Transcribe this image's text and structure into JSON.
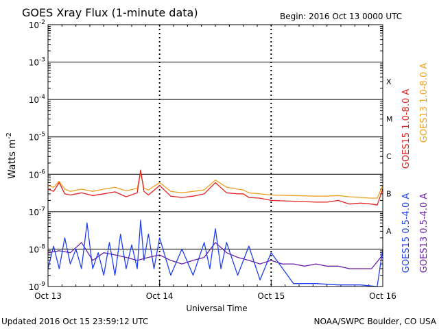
{
  "page": {
    "begin_label": "Begin:  2016 Oct 13 0000 UTC",
    "updated_label": "Updated 2016 Oct 15 23:59:12 UTC",
    "credit_label": "NOAA/SWPC Boulder, CO USA"
  },
  "chart_data": {
    "type": "line",
    "title": "GOES Xray Flux (1-minute data)",
    "xlabel": "Universal Time",
    "ylabel": "Watts m",
    "ylabel_exponent": "-2",
    "y_scale": "log",
    "ylim": [
      1e-09,
      0.01
    ],
    "xlim_days": [
      0,
      3
    ],
    "x_ticks": [
      "Oct 13",
      "Oct 14",
      "Oct 15",
      "Oct 16"
    ],
    "y_ticks": [
      {
        "base": "10",
        "exp": "-2",
        "value": 0.01
      },
      {
        "base": "10",
        "exp": "-3",
        "value": 0.001
      },
      {
        "base": "10",
        "exp": "-4",
        "value": 0.0001
      },
      {
        "base": "10",
        "exp": "-5",
        "value": 1e-05
      },
      {
        "base": "10",
        "exp": "-6",
        "value": 1e-06
      },
      {
        "base": "10",
        "exp": "-7",
        "value": 1e-07
      },
      {
        "base": "10",
        "exp": "-8",
        "value": 1e-08
      },
      {
        "base": "10",
        "exp": "-9",
        "value": 1e-09
      }
    ],
    "flare_classes": [
      {
        "label": "X",
        "value": 0.0001
      },
      {
        "label": "M",
        "value": 1e-05
      },
      {
        "label": "C",
        "value": 1e-06
      },
      {
        "label": "B",
        "value": 1e-07
      },
      {
        "label": "A",
        "value": 1e-08
      }
    ],
    "grid": "horizontal lines at each decade; dotted vertical lines at day boundaries",
    "legend_position": "right, rotated",
    "series": [
      {
        "name": "GOES15 1.0-8.0 A",
        "color": "#e32020",
        "x": [
          0,
          0.05,
          0.1,
          0.15,
          0.2,
          0.3,
          0.4,
          0.5,
          0.6,
          0.7,
          0.8,
          0.83,
          0.86,
          0.9,
          1.0,
          1.1,
          1.2,
          1.3,
          1.4,
          1.5,
          1.6,
          1.7,
          1.75,
          1.8,
          1.9,
          2.0,
          2.2,
          2.4,
          2.5,
          2.6,
          2.7,
          2.8,
          2.9,
          2.95,
          3.0
        ],
        "y": [
          4e-07,
          3.5e-07,
          6e-07,
          3e-07,
          2.8e-07,
          3.2e-07,
          2.7e-07,
          3e-07,
          3.4e-07,
          2.5e-07,
          3.2e-07,
          1.3e-06,
          3.5e-07,
          2.8e-07,
          5e-07,
          2.6e-07,
          2.4e-07,
          2.6e-07,
          3e-07,
          6e-07,
          3.2e-07,
          3e-07,
          3e-07,
          2.4e-07,
          2.3e-07,
          2e-07,
          1.9e-07,
          1.8e-07,
          1.8e-07,
          2e-07,
          1.6e-07,
          1.7e-07,
          1.6e-07,
          1.5e-07,
          4e-07
        ]
      },
      {
        "name": "GOES13 1.0-8.0 A",
        "color": "#f0a020",
        "x": [
          0,
          0.05,
          0.1,
          0.15,
          0.2,
          0.3,
          0.4,
          0.5,
          0.6,
          0.7,
          0.8,
          0.83,
          0.86,
          0.9,
          1.0,
          1.1,
          1.2,
          1.3,
          1.4,
          1.5,
          1.6,
          1.7,
          1.75,
          1.8,
          1.9,
          2.0,
          2.2,
          2.4,
          2.5,
          2.6,
          2.7,
          2.8,
          2.9,
          2.95,
          3.0
        ],
        "y": [
          5e-07,
          4.5e-07,
          6.5e-07,
          4e-07,
          3.5e-07,
          4e-07,
          3.5e-07,
          4e-07,
          4.5e-07,
          3.6e-07,
          4.2e-07,
          1.1e-06,
          4.2e-07,
          3.8e-07,
          6e-07,
          3.5e-07,
          3.2e-07,
          3.5e-07,
          3.8e-07,
          7e-07,
          4.5e-07,
          4e-07,
          3.8e-07,
          3.2e-07,
          3e-07,
          2.8e-07,
          2.7e-07,
          2.6e-07,
          2.6e-07,
          2.7e-07,
          2.5e-07,
          2.4e-07,
          2.3e-07,
          2.3e-07,
          5e-07
        ]
      },
      {
        "name": "GOES15 0.5-4.0 A",
        "color": "#1f3df0",
        "x": [
          0,
          0.05,
          0.1,
          0.15,
          0.2,
          0.25,
          0.3,
          0.35,
          0.4,
          0.45,
          0.5,
          0.55,
          0.6,
          0.65,
          0.7,
          0.75,
          0.8,
          0.83,
          0.86,
          0.9,
          0.95,
          1.0,
          1.1,
          1.2,
          1.3,
          1.4,
          1.45,
          1.5,
          1.55,
          1.6,
          1.7,
          1.8,
          1.9,
          2.0,
          2.2,
          2.4,
          2.6,
          2.8,
          2.95,
          3.0
        ],
        "y": [
          3e-09,
          1.2e-08,
          3e-09,
          2e-08,
          4e-09,
          1e-08,
          3e-09,
          5e-08,
          3e-09,
          8e-09,
          2e-09,
          1.5e-08,
          2e-09,
          2.5e-08,
          3e-09,
          1.3e-08,
          3e-09,
          6e-08,
          5e-09,
          2.5e-08,
          3e-09,
          2e-08,
          2e-09,
          1e-08,
          2e-09,
          1.5e-08,
          3e-09,
          3.5e-08,
          3e-09,
          1.5e-08,
          2e-09,
          1.2e-08,
          1.5e-09,
          8e-09,
          1.2e-09,
          1.2e-09,
          1.1e-09,
          1.1e-09,
          1e-09,
          1e-08
        ]
      },
      {
        "name": "GOES13 0.5-4.0 A",
        "color": "#6a1fa8",
        "x": [
          0,
          0.1,
          0.2,
          0.3,
          0.4,
          0.5,
          0.6,
          0.7,
          0.8,
          0.9,
          1.0,
          1.1,
          1.2,
          1.3,
          1.4,
          1.5,
          1.6,
          1.7,
          1.8,
          1.9,
          2.0,
          2.1,
          2.2,
          2.3,
          2.4,
          2.5,
          2.6,
          2.7,
          2.8,
          2.9,
          3.0
        ],
        "y": [
          8e-09,
          9e-09,
          8e-09,
          1.5e-08,
          5e-09,
          8e-09,
          7e-09,
          6e-09,
          5e-09,
          6e-09,
          7e-09,
          5e-09,
          4e-09,
          5e-09,
          6e-09,
          1.5e-08,
          8e-09,
          6e-09,
          5e-09,
          4e-09,
          5e-09,
          4e-09,
          4e-09,
          3.5e-09,
          4e-09,
          3.5e-09,
          3.5e-09,
          3e-09,
          3e-09,
          3e-09,
          7e-09
        ]
      }
    ]
  }
}
